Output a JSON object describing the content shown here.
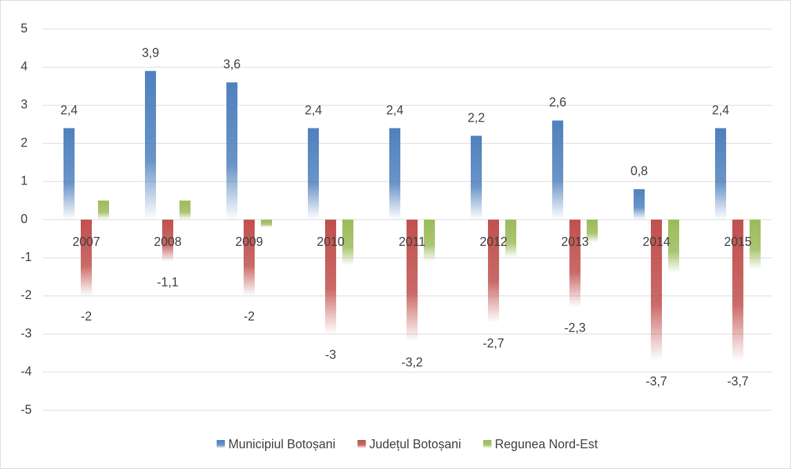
{
  "chart_data": {
    "type": "bar",
    "categories": [
      "2007",
      "2008",
      "2009",
      "2010",
      "2011",
      "2012",
      "2013",
      "2014",
      "2015"
    ],
    "series": [
      {
        "name": "Municipiul Botoșani",
        "color": "#4f81bd",
        "values": [
          2.4,
          3.9,
          3.6,
          2.4,
          2.4,
          2.2,
          2.6,
          0.8,
          2.4
        ],
        "value_labels": [
          "2,4",
          "3,9",
          "3,6",
          "2,4",
          "2,4",
          "2,2",
          "2,6",
          "0,8",
          "2,4"
        ]
      },
      {
        "name": "Județul Botoșani",
        "color": "#c0504d",
        "values": [
          -2,
          -1.1,
          -2,
          -3,
          -3.2,
          -2.7,
          -2.3,
          -3.7,
          -3.7
        ],
        "value_labels": [
          "-2",
          "-1,1",
          "-2",
          "-3",
          "-3,2",
          "-2,7",
          "-2,3",
          "-3,7",
          "-3,7"
        ]
      },
      {
        "name": "Regunea Nord-Est",
        "color": "#9bbb59",
        "values": [
          0.5,
          0.5,
          -0.2,
          -1.2,
          -1.1,
          -1,
          -0.6,
          -1.4,
          -1.3
        ]
      }
    ],
    "ylim": [
      -5,
      5
    ],
    "yticks": [
      -5,
      -4,
      -3,
      -2,
      -1,
      0,
      1,
      2,
      3,
      4,
      5
    ],
    "grid": true,
    "legend": "bottom"
  }
}
